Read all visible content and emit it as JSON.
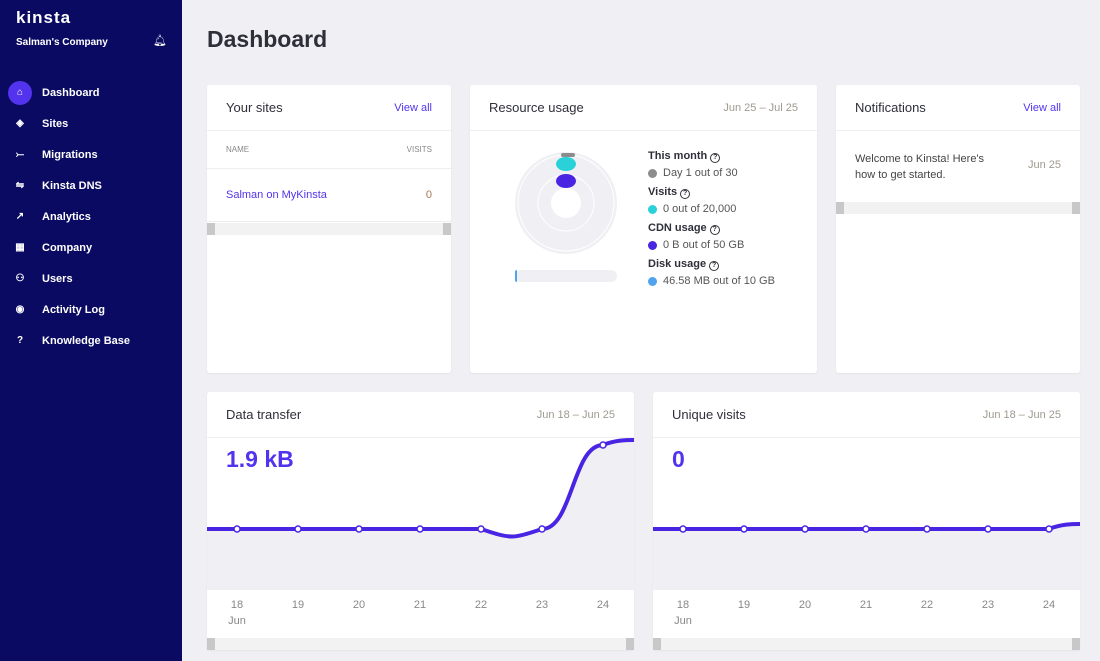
{
  "sidebar": {
    "logo": "kinsta",
    "company": "Salman's Company",
    "items": [
      {
        "label": "Dashboard",
        "icon": "home-icon",
        "glyph": "⌂"
      },
      {
        "label": "Sites",
        "icon": "layers-icon",
        "glyph": "◈"
      },
      {
        "label": "Migrations",
        "icon": "migration-icon",
        "glyph": "⤚"
      },
      {
        "label": "Kinsta DNS",
        "icon": "dns-icon",
        "glyph": "⇋"
      },
      {
        "label": "Analytics",
        "icon": "trend-icon",
        "glyph": "↗"
      },
      {
        "label": "Company",
        "icon": "building-icon",
        "glyph": "▦"
      },
      {
        "label": "Users",
        "icon": "add-user-icon",
        "glyph": "⚇"
      },
      {
        "label": "Activity Log",
        "icon": "eye-icon",
        "glyph": "◉"
      },
      {
        "label": "Knowledge Base",
        "icon": "help-icon",
        "glyph": "?"
      }
    ]
  },
  "page": {
    "title": "Dashboard"
  },
  "sites": {
    "title": "Your sites",
    "view_all": "View all",
    "col_name": "NAME",
    "col_visits": "VISITS",
    "rows": [
      {
        "name": "Salman on MyKinsta",
        "visits": "0"
      }
    ]
  },
  "resource": {
    "title": "Resource usage",
    "range": "Jun 25 – Jul 25",
    "items": [
      {
        "label": "This month",
        "value": "Day 1 out of 30",
        "color": "#8c8c8c"
      },
      {
        "label": "Visits",
        "value": "0 out of 20,000",
        "color": "#2bd1d8"
      },
      {
        "label": "CDN usage",
        "value": "0 B out of 50 GB",
        "color": "#4a24e3"
      },
      {
        "label": "Disk usage",
        "value": "46.58 MB out of 10 GB",
        "color": "#4fa3ef"
      }
    ]
  },
  "notifications": {
    "title": "Notifications",
    "view_all": "View all",
    "items": [
      {
        "text": "Welcome to Kinsta! Here's how to get started.",
        "date": "Jun 25"
      }
    ]
  },
  "transfer": {
    "title": "Data transfer",
    "range": "Jun 18 – Jun 25",
    "total": "1.9 kB",
    "month": "Jun"
  },
  "visits": {
    "title": "Unique visits",
    "range": "Jun 18 – Jun 25",
    "total": "0",
    "month": "Jun"
  },
  "chart_data": [
    {
      "type": "line",
      "title": "Data transfer",
      "categories": [
        "18",
        "19",
        "20",
        "21",
        "22",
        "23",
        "24"
      ],
      "values": [
        0,
        0,
        0,
        0,
        0,
        0,
        1.9
      ],
      "unit": "kB",
      "color": "#4a24e3"
    },
    {
      "type": "line",
      "title": "Unique visits",
      "categories": [
        "18",
        "19",
        "20",
        "21",
        "22",
        "23",
        "24"
      ],
      "values": [
        0,
        0,
        0,
        0,
        0,
        0,
        0
      ],
      "color": "#4a24e3"
    }
  ]
}
